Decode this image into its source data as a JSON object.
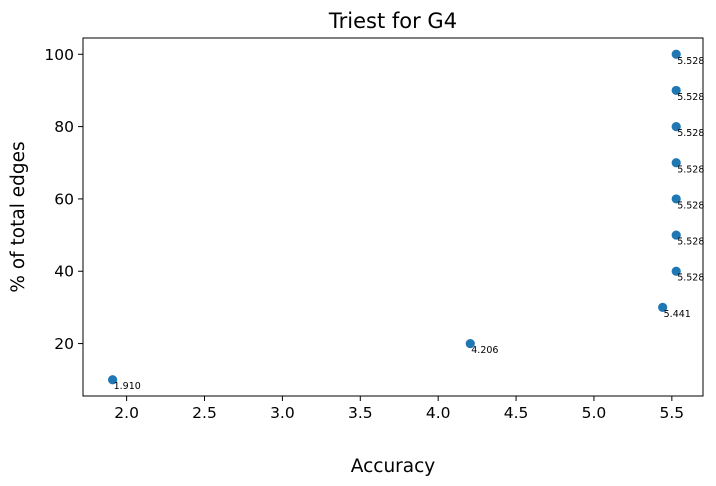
{
  "chart_data": {
    "type": "scatter",
    "title": "Triest for G4",
    "xlabel": "Accuracy",
    "ylabel": "% of total edges",
    "xlim": [
      1.72,
      5.7
    ],
    "ylim": [
      5.5,
      104.5
    ],
    "xticks": [
      2.0,
      2.5,
      3.0,
      3.5,
      4.0,
      4.5,
      5.0,
      5.5
    ],
    "xtick_labels": [
      "2.0",
      "2.5",
      "3.0",
      "3.5",
      "4.0",
      "4.5",
      "5.0",
      "5.5"
    ],
    "yticks": [
      20,
      40,
      60,
      80,
      100
    ],
    "ytick_labels": [
      "20",
      "40",
      "60",
      "80",
      "100"
    ],
    "grid": false,
    "marker_color": "#1f77b4",
    "points": [
      {
        "x": 1.91,
        "y": 10,
        "label": "1.910"
      },
      {
        "x": 4.206,
        "y": 20,
        "label": "4.206"
      },
      {
        "x": 5.441,
        "y": 30,
        "label": "5.441"
      },
      {
        "x": 5.528,
        "y": 40,
        "label": "5.528"
      },
      {
        "x": 5.528,
        "y": 50,
        "label": "5.528"
      },
      {
        "x": 5.528,
        "y": 60,
        "label": "5.528"
      },
      {
        "x": 5.528,
        "y": 70,
        "label": "5.528"
      },
      {
        "x": 5.528,
        "y": 80,
        "label": "5.528"
      },
      {
        "x": 5.528,
        "y": 90,
        "label": "5.528"
      },
      {
        "x": 5.528,
        "y": 100,
        "label": "5.528"
      }
    ]
  }
}
